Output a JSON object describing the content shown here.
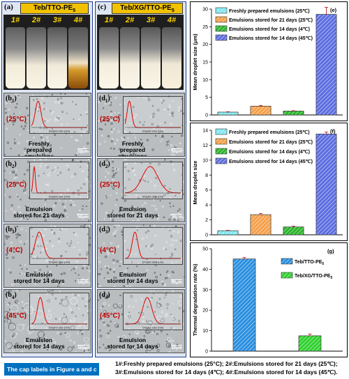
{
  "panel_a": {
    "letter": "(a)",
    "title_text": "Teb/TTO-PE",
    "title_sub": "5",
    "vials": [
      "1#",
      "2#",
      "3#",
      "4#"
    ]
  },
  "panel_c": {
    "letter": "(c)",
    "title_text": "Teb/XG/TTO-PE",
    "title_sub": "5",
    "vials": [
      "1#",
      "2#",
      "3#",
      "4#"
    ]
  },
  "micro_b": [
    {
      "letter": "(b",
      "sub": "1",
      "close": ")",
      "temp": "(25°C)",
      "caption": [
        "Freshly",
        "prepared emulsions"
      ],
      "scale": "50μm"
    },
    {
      "letter": "(b",
      "sub": "2",
      "close": ")",
      "temp": "(25°C)",
      "caption": [
        "Emulsion",
        "stored for 21 days"
      ],
      "scale": "50μm"
    },
    {
      "letter": "(b",
      "sub": "3",
      "close": ")",
      "temp": "(4°C)",
      "caption": [
        "Emulsion",
        "stored for 14 days"
      ],
      "scale": "50μm"
    },
    {
      "letter": "(b",
      "sub": "4",
      "close": ")",
      "temp": "(45°C)",
      "caption": [
        "Emulsion",
        "stored for 14 days"
      ],
      "scale": "50μm"
    }
  ],
  "micro_d": [
    {
      "letter": "(d",
      "sub": "1",
      "close": ")",
      "temp": "(25°C)",
      "caption": [
        "Freshly",
        "prepared emulsions"
      ],
      "scale": "50μm"
    },
    {
      "letter": "(d",
      "sub": "2",
      "close": ")",
      "temp": "(25°C)",
      "caption": [
        "Emulsion",
        "stored for 21 days"
      ],
      "scale": "50μm"
    },
    {
      "letter": "(d",
      "sub": "3",
      "close": ")",
      "temp": "(4°C)",
      "caption": [
        "Emulsion",
        "stored for 14 days"
      ],
      "scale": "50μm"
    },
    {
      "letter": "(d",
      "sub": "4",
      "close": ")",
      "temp": "(45°C)",
      "caption": [
        "Emulsion",
        "stored for 14 days"
      ],
      "scale": "50μm"
    }
  ],
  "inset_xlabel": "Droplet size (nm)",
  "chart_data": [
    {
      "type": "bar",
      "panel": "(e)",
      "ylabel": "Mean droplet size (μm)",
      "ylim": [
        0,
        30
      ],
      "yticks": [
        0,
        5,
        10,
        15,
        20,
        25,
        30
      ],
      "categories": [
        "Freshly prepared emulsions (25℃)",
        "Emulsions stored for 21 days (25℃)",
        "Emulsions stored for 14 days (4℃)",
        "Emulsions stored for 14 days (45℃)"
      ],
      "values": [
        0.8,
        2.5,
        1.1,
        28.5
      ],
      "errors": [
        0.1,
        0.2,
        0.1,
        2.0
      ],
      "colors": [
        "#7fe8f0",
        "#f5a04a",
        "#2bb52b",
        "#5c6ee0"
      ],
      "legend_placement": "top-left"
    },
    {
      "type": "bar",
      "panel": "(f)",
      "ylabel": "Mean droplet size",
      "ylim": [
        0,
        14
      ],
      "yticks": [
        0,
        2,
        4,
        6,
        8,
        10,
        12,
        14
      ],
      "categories": [
        "Freshly prepared emulsions (25℃)",
        "Emulsions stored for 21 days (25℃)",
        "Emulsions stored for 14 days (4℃)",
        "Emulsions stored for 14 days (45℃)"
      ],
      "values": [
        0.55,
        2.7,
        1.05,
        13.5
      ],
      "errors": [
        0.05,
        0.15,
        0.1,
        0.25
      ],
      "colors": [
        "#7fe8f0",
        "#f5a04a",
        "#2bb52b",
        "#5c6ee0"
      ],
      "legend_placement": "top-left"
    },
    {
      "type": "bar",
      "panel": "(g)",
      "ylabel": "Thermal degradation rate (%)",
      "ylim": [
        0,
        50
      ],
      "yticks": [
        0,
        10,
        20,
        30,
        40,
        50
      ],
      "categories": [
        "Teb/TTO-PE5",
        "Teb/XG/TTO-PE5"
      ],
      "legend": [
        {
          "text": "Teb/TTO-PE",
          "sub": "5"
        },
        {
          "text": "Teb/XG/TTO-PE",
          "sub": "5"
        }
      ],
      "values": [
        45.0,
        7.5
      ],
      "errors": [
        0.7,
        0.8
      ],
      "colors": [
        "#2a8fe0",
        "#2fd12f"
      ],
      "legend_placement": "top-right"
    }
  ],
  "bottom_note": "The cap labels in Figure a and c",
  "footnote": [
    "1#:Freshly prepared emulsions (25°C); 2#:Emulsions stored for 21 days (25℃);",
    "3#:Emulsions stored for 14 days (4℃); 4#:Emulsions stored for 14 days (45℃)."
  ]
}
